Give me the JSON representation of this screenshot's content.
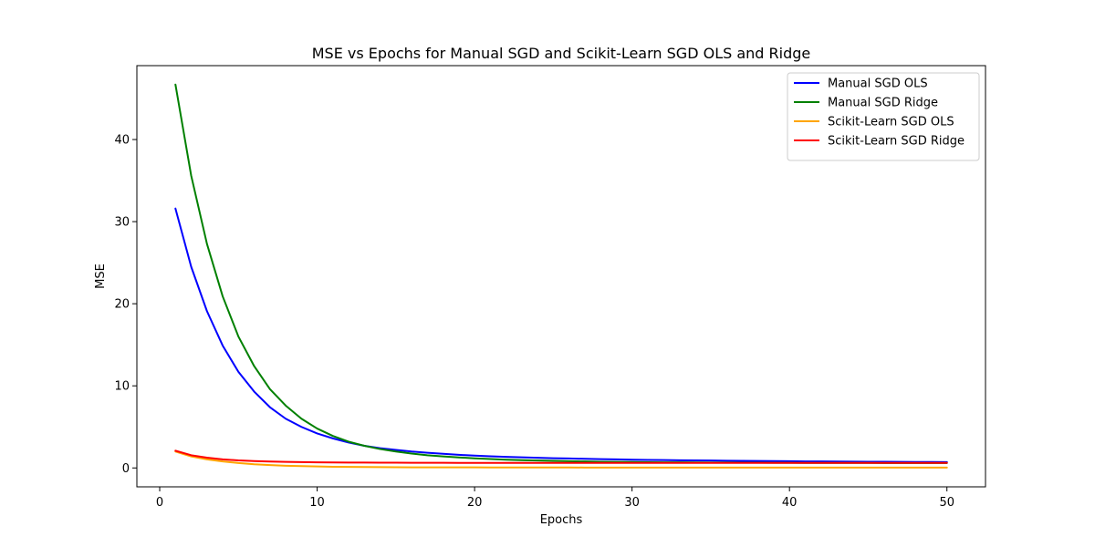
{
  "chart_data": {
    "type": "line",
    "title": "MSE vs Epochs for Manual SGD and Scikit-Learn SGD OLS and Ridge",
    "xlabel": "Epochs",
    "ylabel": "MSE",
    "xlim": [
      -1.45,
      52.45
    ],
    "ylim": [
      -2.3,
      49.0
    ],
    "xticks": [
      0,
      10,
      20,
      30,
      40,
      50
    ],
    "yticks": [
      0,
      10,
      20,
      30,
      40
    ],
    "grid": false,
    "legend_position": "top-right",
    "x": [
      1,
      2,
      3,
      4,
      5,
      6,
      7,
      8,
      9,
      10,
      11,
      12,
      13,
      14,
      15,
      16,
      17,
      18,
      19,
      20,
      21,
      22,
      23,
      24,
      25,
      26,
      27,
      28,
      29,
      30,
      31,
      32,
      33,
      34,
      35,
      36,
      37,
      38,
      39,
      40,
      41,
      42,
      43,
      44,
      45,
      46,
      47,
      48,
      49,
      50
    ],
    "series": [
      {
        "name": "Manual SGD OLS",
        "color": "#0000ff",
        "values": [
          31.6,
          24.5,
          19.1,
          14.9,
          11.7,
          9.3,
          7.4,
          6.0,
          5.0,
          4.2,
          3.6,
          3.1,
          2.7,
          2.4,
          2.2,
          2.0,
          1.85,
          1.72,
          1.6,
          1.5,
          1.42,
          1.35,
          1.29,
          1.24,
          1.19,
          1.15,
          1.11,
          1.07,
          1.04,
          1.01,
          0.98,
          0.96,
          0.94,
          0.92,
          0.9,
          0.88,
          0.86,
          0.85,
          0.83,
          0.82,
          0.8,
          0.79,
          0.78,
          0.77,
          0.76,
          0.75,
          0.74,
          0.73,
          0.72,
          0.71
        ]
      },
      {
        "name": "Manual SGD Ridge",
        "color": "#008000",
        "values": [
          46.7,
          35.6,
          27.3,
          20.9,
          16.0,
          12.4,
          9.6,
          7.6,
          6.0,
          4.8,
          3.9,
          3.2,
          2.7,
          2.3,
          2.0,
          1.75,
          1.55,
          1.4,
          1.28,
          1.17,
          1.08,
          1.01,
          0.95,
          0.9,
          0.86,
          0.82,
          0.79,
          0.76,
          0.74,
          0.72,
          0.7,
          0.69,
          0.68,
          0.67,
          0.66,
          0.65,
          0.64,
          0.64,
          0.63,
          0.63,
          0.62,
          0.62,
          0.61,
          0.61,
          0.61,
          0.6,
          0.6,
          0.6,
          0.6,
          0.6
        ]
      },
      {
        "name": "Scikit-Learn SGD OLS",
        "color": "#ffa500",
        "values": [
          2.0,
          1.4,
          1.05,
          0.8,
          0.6,
          0.45,
          0.35,
          0.27,
          0.22,
          0.18,
          0.15,
          0.13,
          0.11,
          0.1,
          0.09,
          0.08,
          0.08,
          0.07,
          0.07,
          0.07,
          0.06,
          0.06,
          0.06,
          0.06,
          0.06,
          0.06,
          0.05,
          0.05,
          0.05,
          0.05,
          0.05,
          0.05,
          0.05,
          0.05,
          0.05,
          0.05,
          0.05,
          0.05,
          0.05,
          0.05,
          0.05,
          0.05,
          0.05,
          0.05,
          0.05,
          0.05,
          0.05,
          0.05,
          0.05,
          0.05
        ]
      },
      {
        "name": "Scikit-Learn SGD Ridge",
        "color": "#ff0000",
        "values": [
          2.1,
          1.55,
          1.25,
          1.05,
          0.92,
          0.84,
          0.78,
          0.74,
          0.71,
          0.69,
          0.67,
          0.66,
          0.65,
          0.64,
          0.64,
          0.63,
          0.63,
          0.63,
          0.62,
          0.62,
          0.62,
          0.62,
          0.62,
          0.62,
          0.62,
          0.62,
          0.62,
          0.62,
          0.62,
          0.62,
          0.62,
          0.62,
          0.62,
          0.62,
          0.62,
          0.62,
          0.62,
          0.62,
          0.62,
          0.62,
          0.62,
          0.62,
          0.62,
          0.62,
          0.62,
          0.62,
          0.62,
          0.62,
          0.62,
          0.62
        ]
      }
    ]
  }
}
